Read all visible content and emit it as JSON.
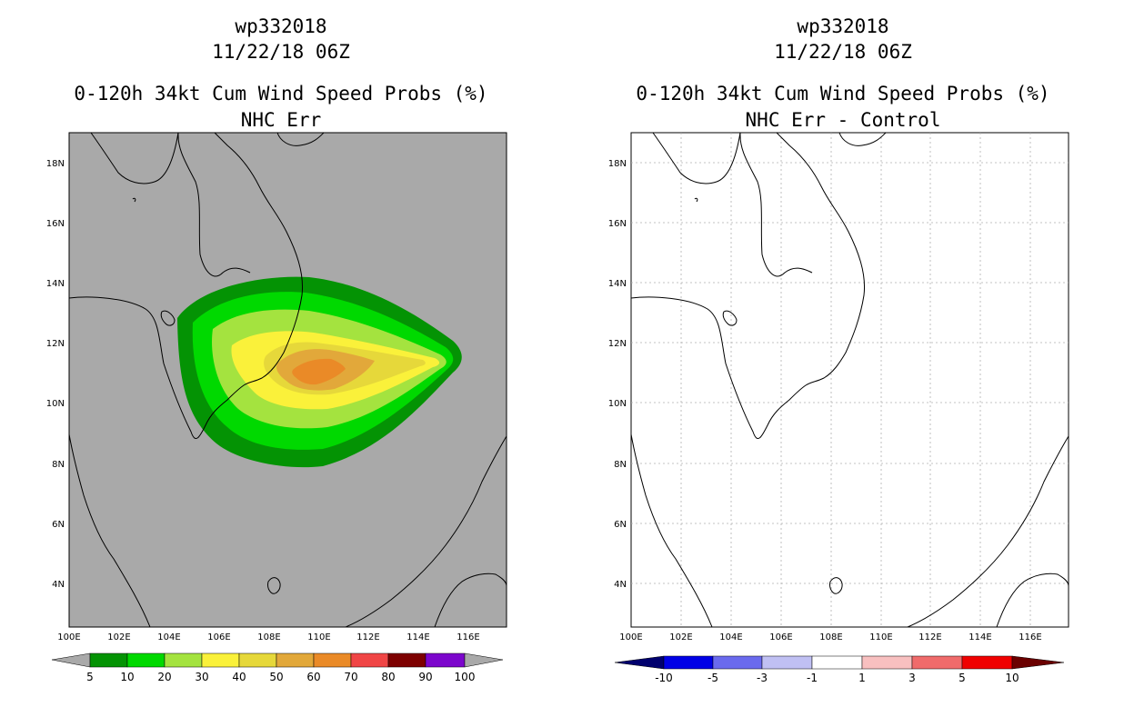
{
  "left": {
    "title_line1": "wp332018",
    "title_line2": "11/22/18 06Z",
    "title_line3": "0-120h 34kt Cum Wind Speed Probs (%)",
    "title_line4": "NHC Err",
    "legend": {
      "labels": [
        "5",
        "10",
        "20",
        "30",
        "40",
        "50",
        "60",
        "70",
        "80",
        "90",
        "100"
      ],
      "colors": [
        "#049304",
        "#00d900",
        "#a4e33f",
        "#faf13a",
        "#e6d83a",
        "#e2a83a",
        "#ea8a27",
        "#f04545",
        "#7d0000",
        "#7c06cc",
        "#a9a9a9"
      ]
    }
  },
  "right": {
    "title_line1": "wp332018",
    "title_line2": "11/22/18 06Z",
    "title_line3": "0-120h 34kt Cum Wind Speed Probs (%)",
    "title_line4": "NHC Err - Control",
    "legend": {
      "labels": [
        "-10",
        "-5",
        "-3",
        "-1",
        "1",
        "3",
        "5",
        "10"
      ],
      "colors": [
        "#00006e",
        "#0000e6",
        "#6a6aee",
        "#c0c0f3",
        "#ffffff",
        "#f8c0c0",
        "#f06b6b",
        "#f00000",
        "#6b0000"
      ]
    }
  },
  "map": {
    "lon_labels": [
      "100E",
      "102E",
      "104E",
      "106E",
      "108E",
      "110E",
      "112E",
      "114E",
      "116E"
    ],
    "lat_labels": [
      "18N",
      "16N",
      "14N",
      "12N",
      "10N",
      "8N",
      "6N",
      "4N"
    ],
    "ocean_color": "#a9a9a9"
  }
}
